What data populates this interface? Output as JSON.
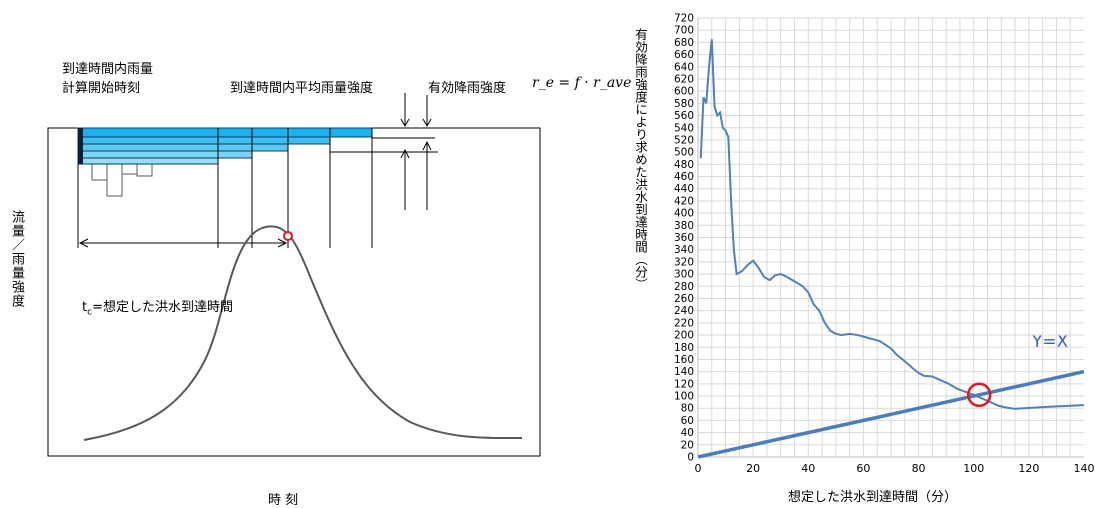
{
  "left_diagram": {
    "label_start": "到達時間内雨量",
    "label_start_2": "計算開始時刻",
    "label_avg": "到達時間内平均雨量強度",
    "label_effective": "有効降雨強度",
    "formula": "r_e = f · r_ave",
    "tc_sub": "c",
    "tc_label": "=想定した洪水到達時間",
    "tc_prefix": "t",
    "y_label": "流量／雨量強度",
    "x_label": "時 刻",
    "colors": {
      "bar_fill": "#1ab2ec",
      "marker": "#e8141b",
      "curve": "#595959"
    }
  },
  "chart": {
    "ylabel": "有効降雨強度により求めた洪水到達時間（分）",
    "xlabel": "想定した洪水到達時間（分）",
    "yx_label": "Y=X",
    "colors": {
      "series": "#4f81bd",
      "line": "#4a7ebb",
      "yx_text": "#2d5fd8",
      "circle": "#e8141b"
    }
  },
  "chart_data": {
    "type": "line",
    "xlabel": "想定した洪水到達時間（分）",
    "ylabel": "有効降雨強度により求めた洪水到達時間（分）",
    "xlim": [
      0,
      140
    ],
    "ylim": [
      0,
      720
    ],
    "x_ticks": [
      0,
      20,
      40,
      60,
      80,
      100,
      120,
      140
    ],
    "y_ticks": [
      0,
      20,
      40,
      60,
      80,
      100,
      120,
      140,
      160,
      180,
      200,
      220,
      240,
      260,
      280,
      300,
      320,
      340,
      360,
      380,
      400,
      420,
      440,
      460,
      480,
      500,
      520,
      540,
      560,
      580,
      600,
      620,
      640,
      660,
      680,
      700,
      720
    ],
    "grid": true,
    "series": [
      {
        "values": [
          [
            1,
            490
          ],
          [
            2,
            590
          ],
          [
            3,
            580
          ],
          [
            4,
            640
          ],
          [
            5,
            685
          ],
          [
            6,
            575
          ],
          [
            7,
            560
          ],
          [
            8,
            565
          ],
          [
            9,
            540
          ],
          [
            10,
            535
          ],
          [
            11,
            525
          ],
          [
            12,
            420
          ],
          [
            13,
            340
          ],
          [
            14,
            300
          ],
          [
            16,
            305
          ],
          [
            18,
            315
          ],
          [
            20,
            322
          ],
          [
            22,
            310
          ],
          [
            24,
            295
          ],
          [
            26,
            290
          ],
          [
            28,
            298
          ],
          [
            30,
            300
          ],
          [
            32,
            296
          ],
          [
            35,
            288
          ],
          [
            38,
            280
          ],
          [
            40,
            270
          ],
          [
            42,
            250
          ],
          [
            44,
            240
          ],
          [
            46,
            220
          ],
          [
            48,
            207
          ],
          [
            50,
            202
          ],
          [
            52,
            200
          ],
          [
            55,
            202
          ],
          [
            58,
            200
          ],
          [
            62,
            195
          ],
          [
            66,
            190
          ],
          [
            70,
            178
          ],
          [
            72,
            168
          ],
          [
            75,
            157
          ],
          [
            78,
            145
          ],
          [
            80,
            138
          ],
          [
            82,
            133
          ],
          [
            85,
            132
          ],
          [
            88,
            126
          ],
          [
            91,
            120
          ],
          [
            94,
            112
          ],
          [
            97,
            107
          ],
          [
            100,
            102
          ],
          [
            103,
            96
          ],
          [
            106,
            90
          ],
          [
            109,
            84
          ],
          [
            112,
            81
          ],
          [
            115,
            79
          ],
          [
            118,
            80
          ],
          [
            122,
            81
          ],
          [
            126,
            82
          ],
          [
            130,
            83
          ],
          [
            135,
            84
          ],
          [
            140,
            85
          ]
        ]
      },
      {
        "values": [
          [
            0,
            0
          ],
          [
            140,
            140
          ]
        ]
      }
    ],
    "annotations": [
      {
        "text": "Y=X",
        "x": 122,
        "y": 180
      }
    ],
    "marker": {
      "x": 102,
      "y": 102
    }
  }
}
